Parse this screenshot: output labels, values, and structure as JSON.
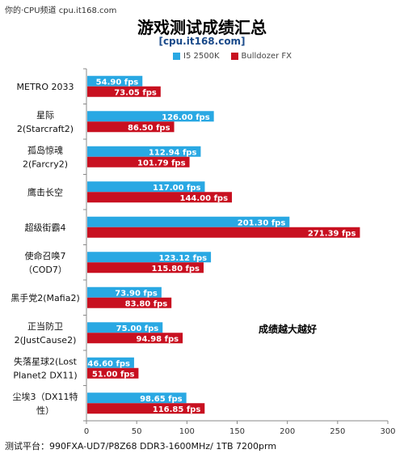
{
  "watermark": "你的·CPU频道 cpu.it168.com",
  "note": "成绩越大越好",
  "footer": "测试平台：990FXA-UD7/P8Z68 DDR3-1600MHz/ 1TB 7200prm",
  "colors": {
    "i5": "#29a8e3",
    "fx": "#c81020"
  },
  "chart_data": {
    "type": "bar",
    "orientation": "horizontal",
    "title": "游戏测试成绩汇总",
    "subtitle": "[cpu.it168.com]",
    "categories": [
      [
        "METRO 2033"
      ],
      [
        "星际",
        "2(Starcraft2)"
      ],
      [
        "孤岛惊魂",
        "2(Farcry2)"
      ],
      [
        "鹰击长空"
      ],
      [
        "超级街霸4"
      ],
      [
        "使命召唤7",
        "（COD7）"
      ],
      [
        "黑手党2(Mafia2)"
      ],
      [
        "正当防卫",
        "2(JustCause2)"
      ],
      [
        "失落星球2(Lost",
        "Planet2 DX11)"
      ],
      [
        "尘埃3（DX11特",
        "性）"
      ]
    ],
    "series": [
      {
        "name": "I5 2500K",
        "values": [
          54.9,
          126.0,
          112.94,
          117.0,
          201.3,
          123.12,
          73.9,
          75.0,
          46.6,
          98.65
        ],
        "labels": [
          "54.90 fps",
          "126.00 fps",
          "112.94 fps",
          "117.00 fps",
          "201.30 fps",
          "123.12 fps",
          "73.90 fps",
          "75.00 fps",
          "46.60 fps",
          "98.65 fps"
        ]
      },
      {
        "name": "Bulldozer FX",
        "values": [
          73.05,
          86.5,
          101.79,
          144.0,
          271.39,
          115.8,
          83.8,
          94.98,
          51.0,
          116.85
        ],
        "labels": [
          "73.05 fps",
          "86.50 fps",
          "101.79 fps",
          "144.00 fps",
          "271.39 fps",
          "115.80 fps",
          "83.80 fps",
          "94.98 fps",
          "51.00 fps",
          "116.85 fps"
        ]
      }
    ],
    "xlim": [
      0,
      300
    ],
    "xticks": [
      "0",
      "50",
      "100",
      "150",
      "200",
      "250",
      "300"
    ],
    "legend": "top",
    "grid": false
  }
}
